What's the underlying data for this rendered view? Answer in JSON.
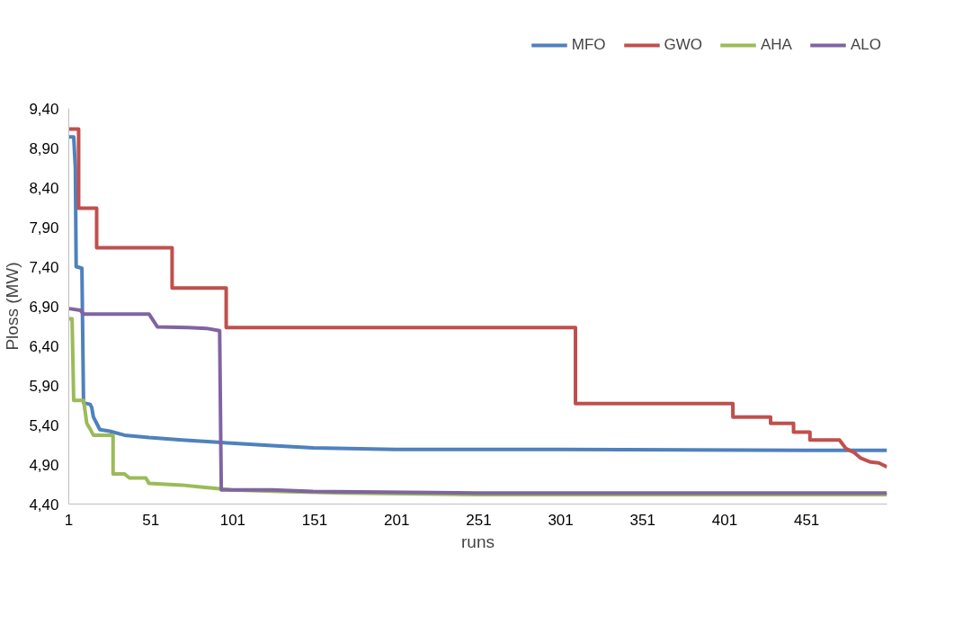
{
  "chart_data": {
    "type": "line",
    "xlabel": "runs",
    "ylabel": "Ploss (MW)",
    "xlim": [
      1,
      500
    ],
    "xticks": [
      1,
      51,
      101,
      151,
      201,
      251,
      301,
      351,
      401,
      451
    ],
    "ylim": [
      4.4,
      9.4
    ],
    "yticks": [
      {
        "value": 4.4,
        "label": "4,40"
      },
      {
        "value": 4.9,
        "label": "4,90"
      },
      {
        "value": 5.4,
        "label": "5,40"
      },
      {
        "value": 5.9,
        "label": "5,90"
      },
      {
        "value": 6.4,
        "label": "6,40"
      },
      {
        "value": 6.9,
        "label": "6,90"
      },
      {
        "value": 7.4,
        "label": "7,40"
      },
      {
        "value": 7.9,
        "label": "7,90"
      },
      {
        "value": 8.4,
        "label": "8,40"
      },
      {
        "value": 8.9,
        "label": "8,90"
      },
      {
        "value": 9.4,
        "label": "9,40"
      }
    ],
    "grid": false,
    "legend": "top right",
    "marker": "none",
    "line_style": "solid",
    "series": [
      {
        "name": "MFO",
        "color": "#4f81bd",
        "x": [
          1,
          4,
          5,
          5.5,
          9,
          10,
          14,
          15,
          16,
          20,
          26,
          35,
          50,
          70,
          92,
          100,
          125,
          150,
          200,
          300,
          450,
          500
        ],
        "values": [
          9.04,
          9.04,
          8.65,
          7.4,
          7.38,
          5.68,
          5.66,
          5.62,
          5.5,
          5.34,
          5.32,
          5.27,
          5.24,
          5.21,
          5.18,
          5.17,
          5.14,
          5.11,
          5.09,
          5.09,
          5.08,
          5.08
        ]
      },
      {
        "name": "GWO",
        "color": "#c0504d",
        "x": [
          1,
          7,
          7,
          18,
          18,
          64,
          64,
          97,
          97,
          310,
          310,
          406,
          406,
          429,
          429,
          443,
          443,
          453,
          453,
          471,
          475,
          480,
          484,
          490,
          495,
          500
        ],
        "values": [
          9.14,
          9.14,
          8.14,
          8.14,
          7.64,
          7.64,
          7.13,
          7.13,
          6.63,
          6.63,
          5.67,
          5.67,
          5.5,
          5.5,
          5.42,
          5.42,
          5.31,
          5.31,
          5.21,
          5.21,
          5.1,
          5.05,
          4.98,
          4.93,
          4.92,
          4.87
        ]
      },
      {
        "name": "AHA",
        "color": "#9bbb59",
        "x": [
          1,
          3,
          4,
          10,
          12,
          14,
          16,
          28,
          28,
          35,
          38,
          48,
          50,
          60,
          70,
          80,
          90,
          100,
          130,
          170,
          250,
          500
        ],
        "values": [
          6.74,
          6.74,
          5.71,
          5.71,
          5.42,
          5.35,
          5.27,
          5.27,
          4.78,
          4.78,
          4.73,
          4.73,
          4.66,
          4.65,
          4.64,
          4.62,
          4.6,
          4.58,
          4.56,
          4.54,
          4.52,
          4.52
        ]
      },
      {
        "name": "ALO",
        "color": "#8064a2",
        "x": [
          1,
          8,
          10,
          50,
          55,
          74,
          85,
          93,
          94,
          125,
          150,
          250,
          500
        ],
        "values": [
          6.87,
          6.85,
          6.8,
          6.8,
          6.64,
          6.63,
          6.62,
          6.59,
          4.58,
          4.58,
          4.56,
          4.54,
          4.54
        ]
      }
    ]
  }
}
